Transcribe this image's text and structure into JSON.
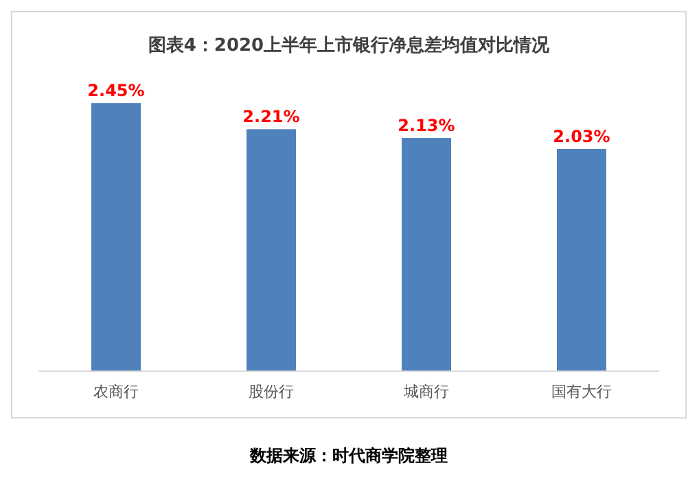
{
  "chart_data": {
    "type": "bar",
    "title": "图表4：2020上半年上市银行净息差均值对比情况",
    "categories": [
      "农商行",
      "股份行",
      "城商行",
      "国有大行"
    ],
    "values": [
      2.45,
      2.21,
      2.13,
      2.03
    ],
    "value_labels": [
      "2.45%",
      "2.21%",
      "2.13%",
      "2.03%"
    ],
    "color": "#4f81bd",
    "annotations": [
      "数据来源：时代商学院整理"
    ]
  }
}
